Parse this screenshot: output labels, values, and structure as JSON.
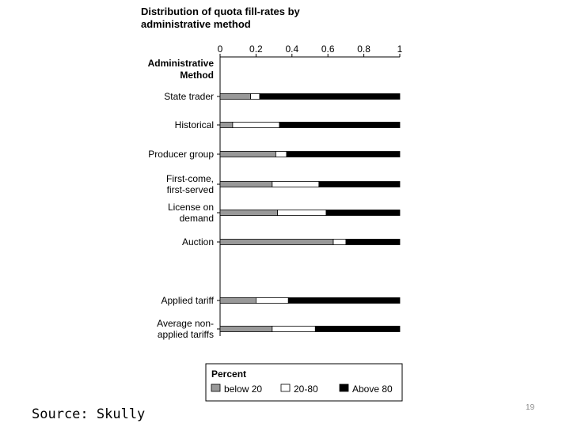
{
  "chart_data": {
    "type": "bar",
    "stacked": true,
    "orientation": "horizontal",
    "title": "Distribution of quota fill-rates by administrative method",
    "title_lines": [
      "Distribution of quota fill-rates by",
      "administrative method"
    ],
    "y_header_lines": [
      "Administrative",
      "Method"
    ],
    "xlim": [
      0,
      1
    ],
    "x_ticks": [
      "0",
      "0.2",
      "0.4",
      "0.6",
      "0.8",
      "1"
    ],
    "categories": [
      {
        "lines": [
          "State trader"
        ]
      },
      {
        "lines": [
          "Historical"
        ]
      },
      {
        "lines": [
          "Producer group"
        ]
      },
      {
        "lines": [
          "First-come,",
          "first-served"
        ]
      },
      {
        "lines": [
          "License on",
          "demand"
        ]
      },
      {
        "lines": [
          "Auction"
        ]
      },
      {
        "lines": [
          "Applied tariff"
        ],
        "gap_before": true
      },
      {
        "lines": [
          "Average non-",
          "applied tariffs"
        ]
      }
    ],
    "series": [
      {
        "name": "below 20",
        "color": "#999999",
        "values": [
          0.17,
          0.07,
          0.31,
          0.29,
          0.32,
          0.63,
          0.2,
          0.29
        ]
      },
      {
        "name": "20-80",
        "color": "#ffffff",
        "values": [
          0.05,
          0.26,
          0.06,
          0.26,
          0.27,
          0.07,
          0.18,
          0.24
        ]
      },
      {
        "name": "Above 80",
        "color": "#000000",
        "values": [
          0.78,
          0.67,
          0.63,
          0.45,
          0.41,
          0.3,
          0.62,
          0.47
        ]
      }
    ],
    "legend": {
      "title": "Percent",
      "placement": "bottom"
    }
  },
  "footer": {
    "source": "Source: Skully",
    "page_number": "19"
  }
}
